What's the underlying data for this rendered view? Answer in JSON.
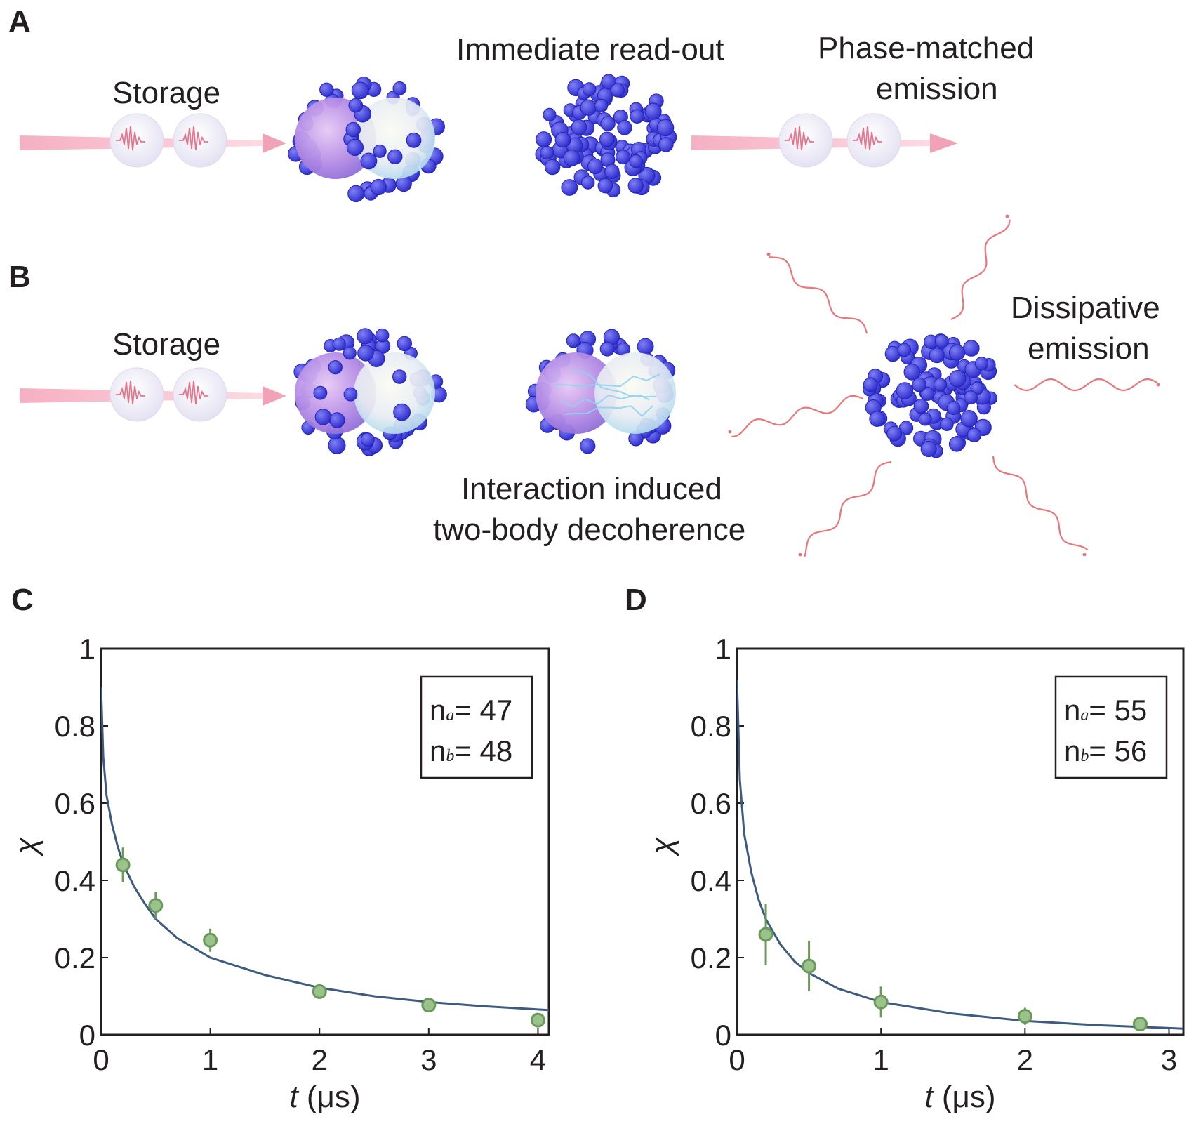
{
  "panels": {
    "a": {
      "letter": "A",
      "storage": "Storage",
      "readout": "Immediate read-out",
      "phase_1": "Phase-matched",
      "phase_2": "emission"
    },
    "b": {
      "letter": "B",
      "storage": "Storage",
      "dissipative_1": "Dissipative",
      "dissipative_2": "emission",
      "interaction_1": "Interaction induced",
      "interaction_2": "two-body decoherence"
    },
    "c": {
      "letter": "C"
    },
    "d": {
      "letter": "D"
    }
  },
  "colors": {
    "atom": "#3b3be0",
    "pulse": "#f07a94",
    "fit": "#3d5a80",
    "data": "#6a9a5b",
    "photon": "#e8767a"
  },
  "chart_data": [
    {
      "id": "C",
      "type": "scatter",
      "xlabel": "t (μs)",
      "ylabel": "χ",
      "xlim": [
        0,
        4.1
      ],
      "ylim": [
        0,
        1
      ],
      "xticks": [
        "0",
        "1",
        "2",
        "3",
        "4"
      ],
      "yticks": [
        "0",
        "0.2",
        "0.4",
        "0.6",
        "0.8",
        "1"
      ],
      "legend": {
        "line1_sym": "n",
        "line1_sub": "a",
        "line1_val": "= 47",
        "line2_sym": "n",
        "line2_sub": "b",
        "line2_val": "= 48"
      },
      "series": [
        {
          "kind": "points",
          "x": [
            0.2,
            0.5,
            1.0,
            2.0,
            3.0,
            4.0
          ],
          "y": [
            0.44,
            0.335,
            0.245,
            0.112,
            0.077,
            0.038
          ],
          "err": [
            0.045,
            0.035,
            0.03,
            0.012,
            0.01,
            0.01
          ]
        },
        {
          "kind": "fit",
          "x": [
            0.0,
            0.02,
            0.05,
            0.1,
            0.15,
            0.2,
            0.3,
            0.4,
            0.5,
            0.7,
            1.0,
            1.5,
            2.0,
            2.5,
            3.0,
            3.5,
            4.1
          ],
          "y": [
            0.9,
            0.72,
            0.62,
            0.545,
            0.49,
            0.445,
            0.385,
            0.34,
            0.3,
            0.25,
            0.2,
            0.155,
            0.122,
            0.1,
            0.085,
            0.074,
            0.064
          ]
        }
      ]
    },
    {
      "id": "D",
      "type": "scatter",
      "xlabel": "t (μs)",
      "ylabel": "χ",
      "xlim": [
        0,
        3.1
      ],
      "ylim": [
        0,
        1
      ],
      "xticks": [
        "0",
        "1",
        "2",
        "3"
      ],
      "yticks": [
        "0",
        "0.2",
        "0.4",
        "0.6",
        "0.8",
        "1"
      ],
      "legend": {
        "line1_sym": "n",
        "line1_sub": "a",
        "line1_val": "= 55",
        "line2_sym": "n",
        "line2_sub": "b",
        "line2_val": "= 56"
      },
      "series": [
        {
          "kind": "points",
          "x": [
            0.2,
            0.5,
            1.0,
            2.0,
            2.8
          ],
          "y": [
            0.26,
            0.178,
            0.085,
            0.048,
            0.028
          ],
          "err": [
            0.08,
            0.065,
            0.04,
            0.022,
            0.01
          ]
        },
        {
          "kind": "fit",
          "x": [
            0.0,
            0.02,
            0.05,
            0.1,
            0.15,
            0.2,
            0.3,
            0.4,
            0.5,
            0.7,
            1.0,
            1.5,
            2.0,
            2.5,
            3.1
          ],
          "y": [
            0.92,
            0.66,
            0.52,
            0.42,
            0.35,
            0.3,
            0.235,
            0.19,
            0.16,
            0.12,
            0.085,
            0.055,
            0.036,
            0.025,
            0.016
          ]
        }
      ]
    }
  ]
}
